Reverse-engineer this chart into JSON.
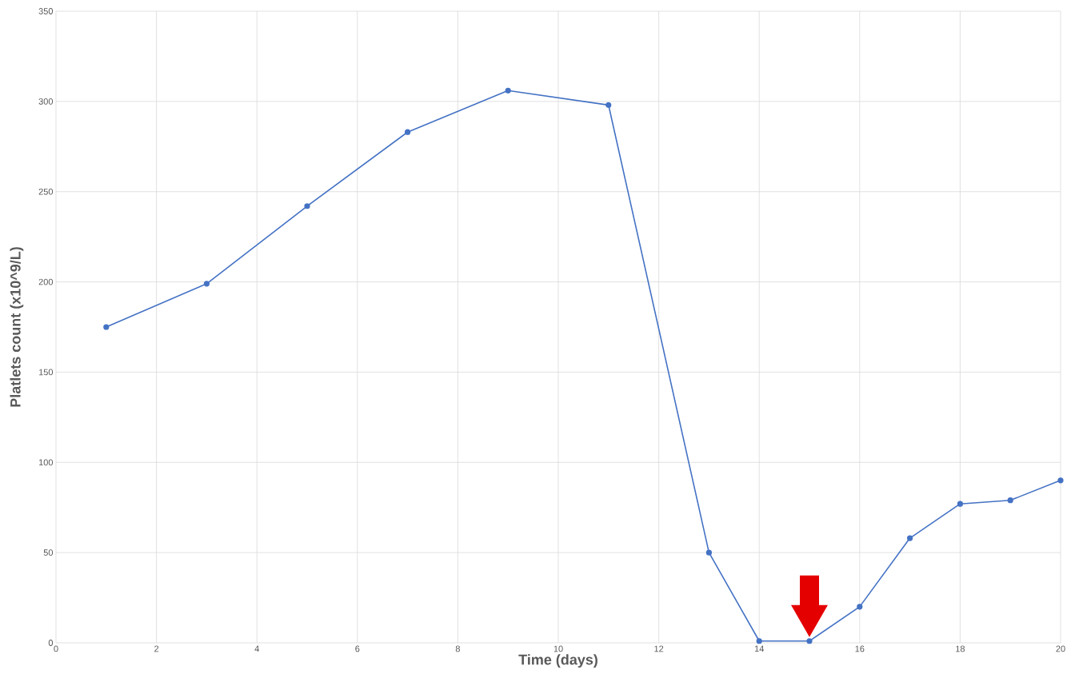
{
  "chart_data": {
    "type": "line",
    "xlabel": "Time (days)",
    "ylabel": "Platlets count (x10^9/L)",
    "x": [
      1,
      3,
      5,
      7,
      9,
      11,
      13,
      14,
      15,
      16,
      17,
      18,
      19,
      20
    ],
    "series": [
      {
        "color": "#4472c4",
        "values": [
          175,
          199,
          242,
          283,
          306,
          298,
          50,
          1,
          1,
          20,
          58,
          77,
          79,
          90
        ]
      }
    ],
    "xlim": [
      0,
      20
    ],
    "ylim": [
      0,
      350
    ],
    "xticks": [
      0,
      2,
      4,
      6,
      8,
      10,
      12,
      14,
      16,
      18,
      20
    ],
    "yticks": [
      0,
      50,
      100,
      150,
      200,
      250,
      300,
      350
    ],
    "grid": true,
    "marker": "circle",
    "line_style": "solid"
  }
}
